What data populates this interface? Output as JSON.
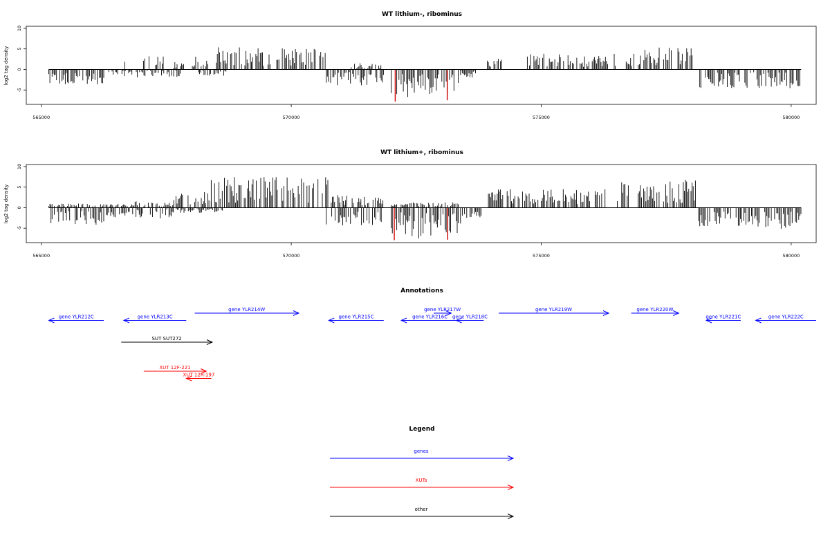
{
  "chart_data": [
    {
      "type": "bar",
      "title": "WT lithium-, ribominus",
      "ylabel": "log2 tag density",
      "xlim": [
        564700,
        580500
      ],
      "ylim": [
        -8.5,
        10.5
      ],
      "x_ticks": [
        565000,
        570000,
        575000,
        580000
      ],
      "y_ticks": [
        -5,
        0,
        5,
        10
      ],
      "grid": false,
      "series": [
        {
          "strand": "plus",
          "color": "#000000",
          "segments": [
            {
              "from": 566650,
              "to": 566700,
              "level": 1.5
            },
            {
              "from": 567000,
              "to": 567450,
              "level": 2.5
            },
            {
              "from": 567650,
              "to": 567850,
              "level": 1.5
            },
            {
              "from": 568000,
              "to": 568350,
              "level": 2.5
            },
            {
              "from": 568500,
              "to": 570700,
              "level": 4.2
            },
            {
              "from": 571200,
              "to": 571850,
              "level": 1.2
            },
            {
              "from": 573900,
              "to": 574250,
              "level": 2.0
            },
            {
              "from": 574700,
              "to": 576500,
              "level": 3.0
            },
            {
              "from": 576700,
              "to": 578050,
              "level": 4.2
            }
          ]
        },
        {
          "strand": "minus",
          "color": "#000000",
          "segments": [
            {
              "from": 565150,
              "to": 566250,
              "level": -2.8
            },
            {
              "from": 566350,
              "to": 567800,
              "level": -1.5
            },
            {
              "from": 568100,
              "to": 568700,
              "level": -1.2
            },
            {
              "from": 570700,
              "to": 571850,
              "level": -3.0
            },
            {
              "from": 572000,
              "to": 573400,
              "level": -5.2
            },
            {
              "from": 573400,
              "to": 573700,
              "level": -1.5
            },
            {
              "from": 578150,
              "to": 580200,
              "level": -3.5
            }
          ]
        },
        {
          "strand": "minus",
          "color": "#cc0000",
          "peaks": [
            {
              "x": 572080,
              "value": -7.8
            },
            {
              "x": 573120,
              "value": -7.5
            }
          ]
        }
      ]
    },
    {
      "type": "bar",
      "title": "WT lithium+, ribominus",
      "ylabel": "log2 tag density",
      "xlim": [
        564700,
        580500
      ],
      "ylim": [
        -8.5,
        10.5
      ],
      "x_ticks": [
        565000,
        570000,
        575000,
        580000
      ],
      "y_ticks": [
        -5,
        0,
        5,
        10
      ],
      "grid": false,
      "series": [
        {
          "strand": "plus",
          "color": "#000000",
          "segments": [
            {
              "from": 565150,
              "to": 566700,
              "level": 0.8
            },
            {
              "from": 566700,
              "to": 567650,
              "level": 1.2
            },
            {
              "from": 567650,
              "to": 568400,
              "level": 3.0
            },
            {
              "from": 568400,
              "to": 570750,
              "level": 6.0
            },
            {
              "from": 570800,
              "to": 571850,
              "level": 2.5
            },
            {
              "from": 572000,
              "to": 573400,
              "level": 1.0
            },
            {
              "from": 573900,
              "to": 576300,
              "level": 3.5
            },
            {
              "from": 576500,
              "to": 578100,
              "level": 5.5
            }
          ]
        },
        {
          "strand": "minus",
          "color": "#000000",
          "segments": [
            {
              "from": 565150,
              "to": 566250,
              "level": -3.2
            },
            {
              "from": 566300,
              "to": 567650,
              "level": -2.0
            },
            {
              "from": 567700,
              "to": 568700,
              "level": -1.0
            },
            {
              "from": 570700,
              "to": 571850,
              "level": -3.5
            },
            {
              "from": 572000,
              "to": 573400,
              "level": -5.8
            },
            {
              "from": 573400,
              "to": 573800,
              "level": -2.0
            },
            {
              "from": 578150,
              "to": 580200,
              "level": -4.0
            }
          ]
        },
        {
          "strand": "minus",
          "color": "#cc0000",
          "peaks": [
            {
              "x": 572060,
              "value": -7.9
            },
            {
              "x": 573130,
              "value": -7.8
            }
          ]
        }
      ]
    },
    {
      "type": "table",
      "title": "Annotations",
      "features": [
        {
          "label": "gene YLR212C",
          "start": 565150,
          "end": 566250,
          "strand": "-",
          "row": 1,
          "category": "genes"
        },
        {
          "label": "gene YLR213C",
          "start": 566650,
          "end": 567900,
          "strand": "-",
          "row": 1,
          "category": "genes"
        },
        {
          "label": "gene YLR214W",
          "start": 568070,
          "end": 570150,
          "strand": "+",
          "row": 0,
          "category": "genes"
        },
        {
          "label": "gene YLR215C",
          "start": 570750,
          "end": 571850,
          "strand": "-",
          "row": 1,
          "category": "genes"
        },
        {
          "label": "gene YLR216C",
          "start": 572200,
          "end": 573350,
          "strand": "-",
          "row": 1,
          "category": "genes"
        },
        {
          "label": "gene YLR217W",
          "start": 572850,
          "end": 573200,
          "strand": "+",
          "row": 0,
          "category": "genes"
        },
        {
          "label": "gene YLR218C",
          "start": 573300,
          "end": 573850,
          "strand": "-",
          "row": 1,
          "category": "genes"
        },
        {
          "label": "gene YLR219W",
          "start": 574150,
          "end": 576350,
          "strand": "+",
          "row": 0,
          "category": "genes"
        },
        {
          "label": "gene YLR220W",
          "start": 576800,
          "end": 577750,
          "strand": "+",
          "row": 0,
          "category": "genes"
        },
        {
          "label": "gene YLR221C",
          "start": 578300,
          "end": 578990,
          "strand": "-",
          "row": 1,
          "category": "genes"
        },
        {
          "label": "gene YLR222C",
          "start": 579290,
          "end": 580500,
          "strand": "-",
          "row": 1,
          "category": "genes"
        },
        {
          "label": "SUT SUT272",
          "start": 566600,
          "end": 568420,
          "strand": "+",
          "row": 4,
          "category": "other"
        },
        {
          "label": "XUT 12F-221",
          "start": 567050,
          "end": 568300,
          "strand": "+",
          "row": 8,
          "category": "XUTs"
        },
        {
          "label": "XUT 12R-197",
          "start": 567900,
          "end": 568400,
          "strand": "-",
          "row": 9,
          "category": "XUTs"
        }
      ]
    },
    {
      "type": "table",
      "title": "Legend",
      "entries": [
        {
          "label": "genes",
          "color": "#0000ff"
        },
        {
          "label": "XUTs",
          "color": "#ff0000"
        },
        {
          "label": "other",
          "color": "#000000"
        }
      ]
    }
  ]
}
